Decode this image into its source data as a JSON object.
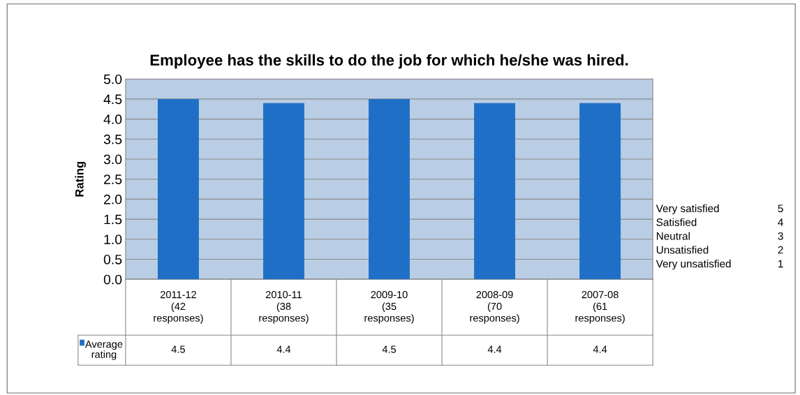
{
  "chart_data": {
    "type": "bar",
    "title": "Employee has the skills to do the job for which he/she was hired.",
    "ylabel": "Rating",
    "categories": [
      "2011-12\n(42\nresponses)",
      "2010-11\n(38\nresponses)",
      "2009-10\n(35\nresponses)",
      "2008-09\n(70\nresponses)",
      "2007-08\n(61\nresponses)"
    ],
    "series": [
      {
        "name": "Average rating",
        "color": "#1f6fc6",
        "values": [
          4.5,
          4.4,
          4.5,
          4.4,
          4.4
        ]
      }
    ],
    "data_labels": true,
    "ylim": [
      0,
      5
    ],
    "yticks": [
      {
        "value": 0,
        "label": "0.0"
      },
      {
        "value": 0.5,
        "label": "0.5"
      },
      {
        "value": 1,
        "label": "1.0"
      },
      {
        "value": 1.5,
        "label": "1.5"
      },
      {
        "value": 2,
        "label": "2.0"
      },
      {
        "value": 2.5,
        "label": "2.5"
      },
      {
        "value": 3,
        "label": "3.0"
      },
      {
        "value": 3.5,
        "label": "3.5"
      },
      {
        "value": 4,
        "label": "4.0"
      },
      {
        "value": 4.5,
        "label": "4.5"
      },
      {
        "value": 5,
        "label": "5.0"
      }
    ],
    "grid": "y",
    "annotations": [
      "Very satisfied 5",
      "Satisfied 4",
      "Neutral 3",
      "Unsatisfied 2",
      "Very unsatisfied 1"
    ]
  }
}
